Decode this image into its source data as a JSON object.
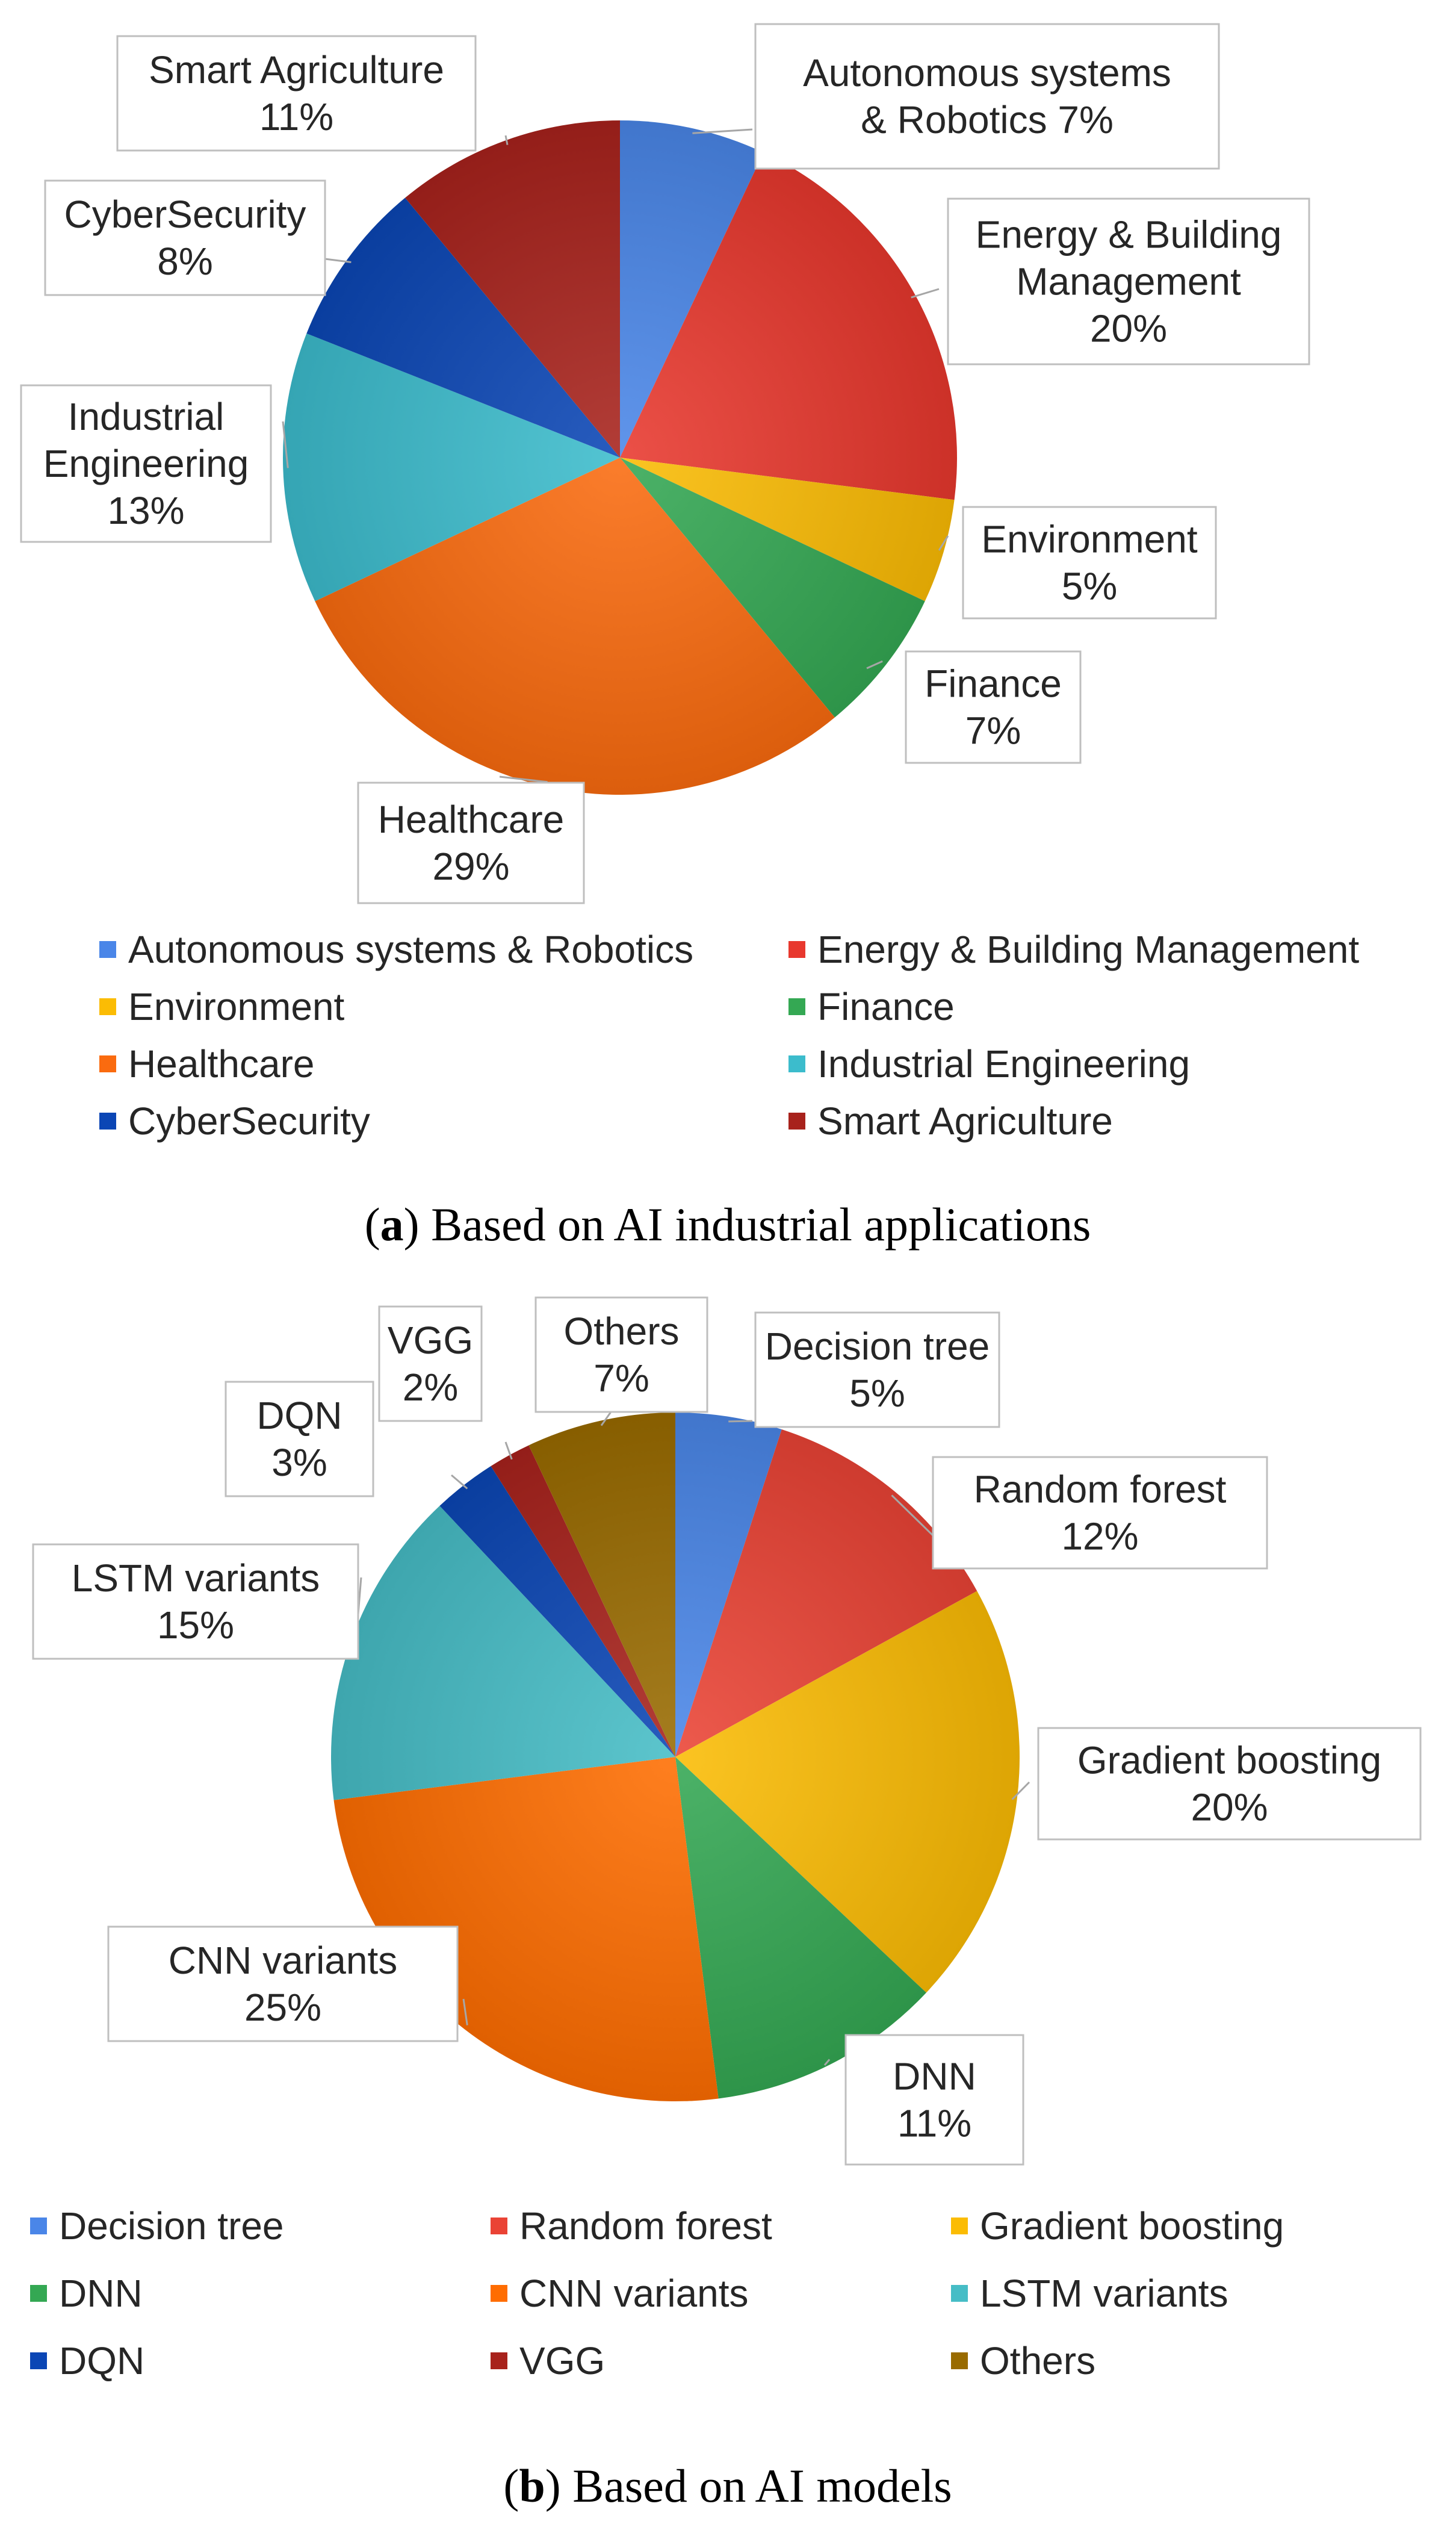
{
  "chart_data": [
    {
      "type": "pie",
      "title": "",
      "caption": {
        "letter": "a",
        "text": "Based on AI industrial applications"
      },
      "slices": [
        {
          "label": "Autonomous systems & Robotics",
          "callout_lines": [
            "Autonomous systems",
            "& Robotics 7%"
          ],
          "value": 7,
          "color": "#4a86e8"
        },
        {
          "label": "Energy & Building Management",
          "callout_lines": [
            "Energy & Building",
            "Management",
            "20%"
          ],
          "value": 20,
          "color": "#e8382e"
        },
        {
          "label": "Environment",
          "callout_lines": [
            "Environment",
            "5%"
          ],
          "value": 5,
          "color": "#fbbc04"
        },
        {
          "label": "Finance",
          "callout_lines": [
            "Finance",
            "7%"
          ],
          "value": 7,
          "color": "#34a853"
        },
        {
          "label": "Healthcare",
          "callout_lines": [
            "Healthcare",
            "29%"
          ],
          "value": 29,
          "color": "#fa6b0f"
        },
        {
          "label": "Industrial Engineering",
          "callout_lines": [
            "Industrial",
            "Engineering",
            "13%"
          ],
          "value": 13,
          "color": "#3cbccc"
        },
        {
          "label": "CyberSecurity",
          "callout_lines": [
            "CyberSecurity",
            "8%"
          ],
          "value": 8,
          "color": "#0b46b5"
        },
        {
          "label": "Smart Agriculture",
          "callout_lines": [
            "Smart Agriculture",
            "11%"
          ],
          "value": 11,
          "color": "#a8221c"
        }
      ]
    },
    {
      "type": "pie",
      "title": "",
      "caption": {
        "letter": "b",
        "text": "Based on AI models"
      },
      "slices": [
        {
          "label": "Decision tree",
          "callout_lines": [
            "Decision tree",
            "5%"
          ],
          "value": 5,
          "color": "#4a86e8"
        },
        {
          "label": "Random forest",
          "callout_lines": [
            "Random forest",
            "12%"
          ],
          "value": 12,
          "color": "#ea4335"
        },
        {
          "label": "Gradient boosting",
          "callout_lines": [
            "Gradient boosting",
            "20%"
          ],
          "value": 20,
          "color": "#fbbc04"
        },
        {
          "label": "DNN",
          "callout_lines": [
            "DNN",
            "11%"
          ],
          "value": 11,
          "color": "#34a853"
        },
        {
          "label": "CNN variants",
          "callout_lines": [
            "CNN variants",
            "25%"
          ],
          "value": 25,
          "color": "#ff6d01"
        },
        {
          "label": "LSTM variants",
          "callout_lines": [
            "LSTM variants",
            "15%"
          ],
          "value": 15,
          "color": "#46bdc6"
        },
        {
          "label": "DQN",
          "callout_lines": [
            "DQN",
            "3%"
          ],
          "value": 3,
          "color": "#0b46b5"
        },
        {
          "label": "VGG",
          "callout_lines": [
            "VGG",
            "2%"
          ],
          "value": 2,
          "color": "#a8221c"
        },
        {
          "label": "Others",
          "callout_lines": [
            "Others",
            "7%"
          ],
          "value": 7,
          "color": "#996b00"
        }
      ]
    }
  ]
}
